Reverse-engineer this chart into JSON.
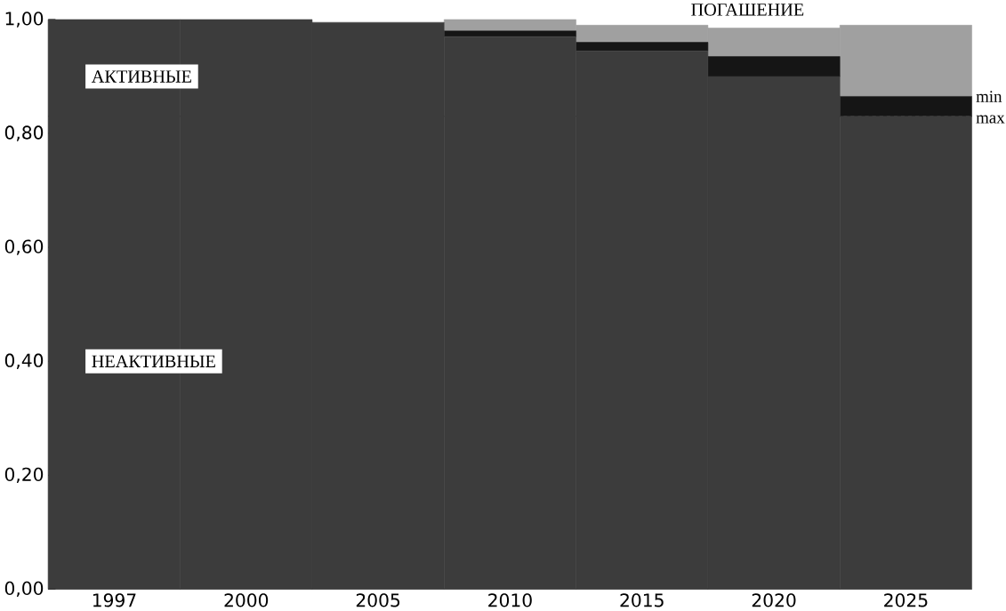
{
  "chart_data": {
    "type": "bar",
    "stacked": true,
    "categories": [
      "1997",
      "2000",
      "2005",
      "2010",
      "2015",
      "2020",
      "2025"
    ],
    "series": [
      {
        "color": "#3c3c3c",
        "values": [
          1.0,
          1.0,
          0.995,
          0.97,
          0.945,
          0.9,
          0.83
        ]
      },
      {
        "color": "#151515",
        "values": [
          0,
          0,
          0,
          0.01,
          0.015,
          0.035,
          0.035
        ]
      },
      {
        "name": "ПОГАШЕНИЕ",
        "color": "#a0a0a0",
        "values": [
          0,
          0,
          0,
          0.02,
          0.03,
          0.05,
          0.125
        ]
      }
    ],
    "ylim": [
      0,
      1
    ],
    "yticks": [
      {
        "value": 0,
        "label": "0,00"
      },
      {
        "value": 0.2,
        "label": "0,20"
      },
      {
        "value": 0.4,
        "label": "0,40"
      },
      {
        "value": 0.6,
        "label": "0,60"
      },
      {
        "value": 0.8,
        "label": "0,80"
      },
      {
        "value": 1.0,
        "label": "1,00"
      }
    ],
    "ref_lines": [
      {
        "axis": "y",
        "value": 0.83,
        "color": "#111111",
        "line_style": "dashed"
      }
    ],
    "annotations": [
      "АКТИВНЫЕ",
      "НЕАКТИВНЫЕ",
      "min",
      "max"
    ],
    "legend": false,
    "grid": false
  }
}
